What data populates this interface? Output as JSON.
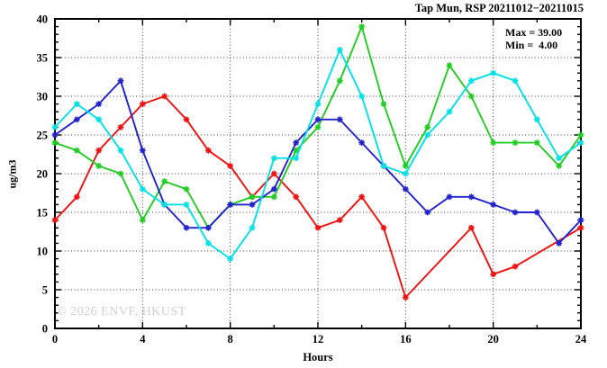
{
  "header": {
    "title": "Tap Mun, RSP 20211012−20211015"
  },
  "legend": {
    "max_label": "Max = 39.00",
    "min_label": "Min =  4.00"
  },
  "watermark": "© 2026 ENVF, HKUST",
  "chart_data": {
    "type": "line",
    "title": "Tap Mun, RSP 20211012−20211015",
    "xlabel": "Hours",
    "ylabel": "ug/m3",
    "xlim": [
      0,
      24
    ],
    "ylim": [
      0,
      40
    ],
    "x_major_ticks": [
      0,
      4,
      8,
      12,
      16,
      20,
      24
    ],
    "x_minor_step": 2,
    "y_major_ticks": [
      0,
      5,
      10,
      15,
      20,
      25,
      30,
      35,
      40
    ],
    "y_minor_step": 1,
    "grid": true,
    "legend_position": "top-right-inside",
    "annotations": [
      "Max = 39.00",
      "Min =  4.00"
    ],
    "x": [
      0,
      1,
      2,
      3,
      4,
      5,
      6,
      7,
      8,
      9,
      10,
      11,
      12,
      13,
      14,
      15,
      16,
      17,
      18,
      19,
      20,
      21,
      22,
      23,
      24
    ],
    "series": [
      {
        "name": "red-series",
        "color": "#ee1111",
        "values": [
          14,
          17,
          23,
          26,
          29,
          30,
          27,
          23,
          21,
          17,
          20,
          17,
          13,
          14,
          17,
          13,
          4,
          null,
          null,
          13,
          7,
          8,
          null,
          null,
          13
        ]
      },
      {
        "name": "green-series",
        "color": "#22cc22",
        "values": [
          24,
          23,
          21,
          20,
          14,
          19,
          18,
          13,
          16,
          17,
          17,
          23,
          26,
          32,
          39,
          29,
          21,
          26,
          34,
          30,
          24,
          24,
          24,
          21,
          25
        ]
      },
      {
        "name": "blue-series",
        "color": "#2222cc",
        "values": [
          25,
          27,
          29,
          32,
          23,
          16,
          13,
          13,
          16,
          16,
          18,
          24,
          27,
          27,
          24,
          21,
          18,
          15,
          17,
          17,
          16,
          15,
          15,
          11,
          14
        ]
      },
      {
        "name": "cyan-series",
        "color": "#00e1e6",
        "values": [
          26,
          29,
          27,
          23,
          18,
          16,
          16,
          11,
          9,
          13,
          22,
          22,
          29,
          36,
          30,
          21,
          20,
          25,
          28,
          32,
          33,
          32,
          27,
          22,
          24
        ]
      }
    ]
  }
}
